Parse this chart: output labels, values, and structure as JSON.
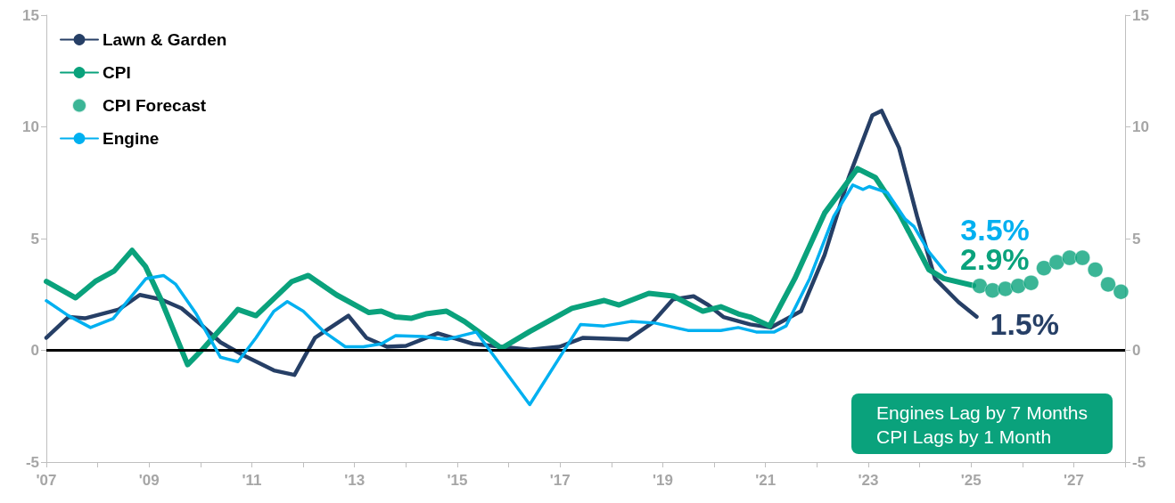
{
  "chart_data": {
    "type": "line",
    "xlim": [
      2007,
      2028
    ],
    "ylim": [
      -5,
      15
    ],
    "y2lim": [
      -5,
      15
    ],
    "xticks": [
      {
        "value": 2007,
        "label": "'07"
      },
      {
        "value": 2008,
        "label": null
      },
      {
        "value": 2009,
        "label": "'09"
      },
      {
        "value": 2010,
        "label": null
      },
      {
        "value": 2011,
        "label": "'11"
      },
      {
        "value": 2012,
        "label": null
      },
      {
        "value": 2013,
        "label": "'13"
      },
      {
        "value": 2014,
        "label": null
      },
      {
        "value": 2015,
        "label": "'15"
      },
      {
        "value": 2016,
        "label": null
      },
      {
        "value": 2017,
        "label": "'17"
      },
      {
        "value": 2018,
        "label": null
      },
      {
        "value": 2019,
        "label": "'19"
      },
      {
        "value": 2020,
        "label": null
      },
      {
        "value": 2021,
        "label": "'21"
      },
      {
        "value": 2022,
        "label": null
      },
      {
        "value": 2023,
        "label": "'23"
      },
      {
        "value": 2024,
        "label": null
      },
      {
        "value": 2025,
        "label": "'25"
      },
      {
        "value": 2026,
        "label": null
      },
      {
        "value": 2027,
        "label": "'27"
      },
      {
        "value": 2028,
        "label": null
      }
    ],
    "yticks": [
      -5,
      0,
      5,
      10,
      15
    ],
    "y2ticks": [
      -5,
      0,
      5,
      10,
      15
    ],
    "grid": false,
    "legend": "top left",
    "ref_lines": [
      {
        "axis": "y",
        "value": 0,
        "color": "#000000"
      }
    ],
    "annotations": [
      "Engines Lag by 7 Months\nCPI Lags by 1 Month"
    ],
    "series": [
      {
        "name": "Lawn & Garden",
        "color": "#263f66",
        "x": [
          2007,
          2007.43,
          2007.75,
          2008.41,
          2008.82,
          2009.23,
          2009.63,
          2010.04,
          2010.39,
          2010.85,
          2011.43,
          2011.83,
          2012.23,
          2012.88,
          2013.23,
          2013.63,
          2014.0,
          2014.62,
          2015.31,
          2016.41,
          2016.99,
          2017.45,
          2018.33,
          2018.79,
          2019.2,
          2019.6,
          2019.89,
          2020.18,
          2020.7,
          2021.1,
          2021.69,
          2022.15,
          2022.62,
          2023.08,
          2023.26,
          2023.6,
          2023.95,
          2024.3,
          2024.76,
          2025.11
        ],
        "values": [
          0.56,
          1.49,
          1.43,
          1.83,
          2.48,
          2.28,
          1.88,
          1.09,
          0.36,
          -0.24,
          -0.9,
          -1.1,
          0.56,
          1.55,
          0.56,
          0.16,
          0.2,
          0.76,
          0.29,
          0.03,
          0.16,
          0.56,
          0.49,
          1.22,
          2.28,
          2.42,
          2.02,
          1.49,
          1.16,
          1.02,
          1.75,
          4.27,
          7.73,
          10.52,
          10.72,
          9.06,
          6.0,
          3.21,
          2.15,
          1.5
        ],
        "value_labels": [
          null,
          null,
          null,
          null,
          null,
          null,
          null,
          null,
          null,
          null,
          null,
          null,
          null,
          null,
          null,
          null,
          null,
          null,
          null,
          null,
          null,
          null,
          null,
          null,
          null,
          null,
          null,
          null,
          null,
          null,
          null,
          null,
          null,
          null,
          null,
          null,
          null,
          null,
          null,
          "1.5%"
        ]
      },
      {
        "name": "CPI",
        "color": "#0aa27c",
        "x": [
          2007,
          2007.57,
          2007.95,
          2008.32,
          2008.67,
          2008.93,
          2009.23,
          2009.75,
          2010.04,
          2010.73,
          2011.08,
          2011.78,
          2012.1,
          2012.65,
          2013.28,
          2013.52,
          2013.8,
          2014.1,
          2014.39,
          2014.79,
          2015.14,
          2015.86,
          2016.41,
          2017.23,
          2017.86,
          2018.15,
          2018.73,
          2019.2,
          2019.78,
          2020.13,
          2020.47,
          2020.7,
          2021.08,
          2021.57,
          2022.15,
          2022.79,
          2023.14,
          2023.6,
          2024.18,
          2024.47,
          2025.05
        ],
        "values": [
          3.08,
          2.35,
          3.08,
          3.55,
          4.47,
          3.75,
          2.28,
          -0.64,
          0.04,
          1.83,
          1.55,
          3.08,
          3.35,
          2.48,
          1.69,
          1.75,
          1.49,
          1.43,
          1.63,
          1.75,
          1.29,
          0.09,
          0.84,
          1.88,
          2.23,
          2.03,
          2.55,
          2.43,
          1.75,
          1.95,
          1.63,
          1.49,
          1.09,
          3.21,
          6.14,
          8.13,
          7.73,
          6.14,
          3.61,
          3.21,
          2.9
        ],
        "value_labels": [
          null,
          null,
          null,
          null,
          null,
          null,
          null,
          null,
          null,
          null,
          null,
          null,
          null,
          null,
          null,
          null,
          null,
          null,
          null,
          null,
          null,
          null,
          null,
          null,
          null,
          null,
          null,
          null,
          null,
          null,
          null,
          null,
          null,
          null,
          null,
          null,
          null,
          null,
          null,
          null,
          "2.9%"
        ]
      },
      {
        "name": "CPI Forecast",
        "type": "scatter",
        "marker": "circle",
        "color": "#0aa27c",
        "x": [
          2025.17,
          2025.42,
          2025.67,
          2025.92,
          2026.17,
          2026.42,
          2026.67,
          2026.92,
          2027.17,
          2027.42,
          2027.67,
          2027.92
        ],
        "values": [
          2.88,
          2.68,
          2.75,
          2.88,
          3.02,
          3.68,
          3.94,
          4.14,
          4.14,
          3.61,
          2.95,
          2.62
        ]
      },
      {
        "name": "Engine",
        "color": "#00b0f0",
        "x": [
          2007,
          2007.43,
          2007.86,
          2008.3,
          2008.94,
          2009.28,
          2009.52,
          2009.92,
          2010.39,
          2010.73,
          2011.08,
          2011.43,
          2011.69,
          2012.0,
          2012.41,
          2012.82,
          2013.17,
          2013.52,
          2013.8,
          2014.33,
          2014.79,
          2015.37,
          2016.41,
          2017.4,
          2017.86,
          2018.38,
          2018.85,
          2019.49,
          2020.13,
          2020.47,
          2020.82,
          2021.17,
          2021.4,
          2021.86,
          2022.33,
          2022.7,
          2022.9,
          2023.02,
          2023.37,
          2023.72,
          2023.89,
          2024.18,
          2024.5
        ],
        "values": [
          2.22,
          1.55,
          1.02,
          1.42,
          3.21,
          3.35,
          2.95,
          1.62,
          -0.31,
          -0.51,
          0.56,
          1.75,
          2.18,
          1.75,
          0.82,
          0.16,
          0.16,
          0.29,
          0.66,
          0.62,
          0.49,
          0.82,
          -2.43,
          1.16,
          1.09,
          1.29,
          1.22,
          0.89,
          0.89,
          1.02,
          0.82,
          0.82,
          1.09,
          3.21,
          6.0,
          7.4,
          7.2,
          7.33,
          7.06,
          5.87,
          5.54,
          4.41,
          3.5
        ],
        "value_labels": [
          null,
          null,
          null,
          null,
          null,
          null,
          null,
          null,
          null,
          null,
          null,
          null,
          null,
          null,
          null,
          null,
          null,
          null,
          null,
          null,
          null,
          null,
          null,
          null,
          null,
          null,
          null,
          null,
          null,
          null,
          null,
          null,
          null,
          null,
          null,
          null,
          null,
          null,
          null,
          null,
          null,
          null,
          "3.5%"
        ]
      }
    ]
  }
}
